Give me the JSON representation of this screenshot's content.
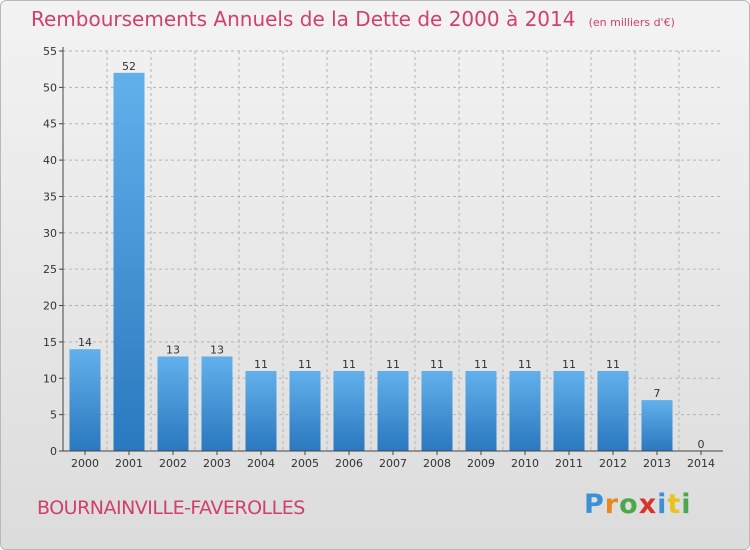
{
  "title": "Remboursements Annuels de la Dette de 2000 à 2014",
  "subtitle": "(en milliers d'€)",
  "place": "BOURNAINVILLE-FAVEROLLES",
  "logo": {
    "text": "Proxiti",
    "letters": [
      {
        "char": "P",
        "color": "#3d8fd6"
      },
      {
        "char": "r",
        "color": "#e8891e"
      },
      {
        "char": "o",
        "color": "#4aa84a"
      },
      {
        "char": "x",
        "color": "#d8342c"
      },
      {
        "char": "i",
        "color": "#3d8fd6"
      },
      {
        "char": "t",
        "color": "#e8c31e"
      },
      {
        "char": "i",
        "color": "#4aa84a"
      }
    ]
  },
  "colors": {
    "title": "#d0406a",
    "bar_light": "#62b0eb",
    "bar_dark": "#2a78be",
    "axis": "#444444",
    "grid": "#b4b4b4"
  },
  "chart_data": {
    "type": "bar",
    "categories": [
      "2000",
      "2001",
      "2002",
      "2003",
      "2004",
      "2005",
      "2006",
      "2007",
      "2008",
      "2009",
      "2010",
      "2011",
      "2012",
      "2013",
      "2014"
    ],
    "values": [
      14,
      52,
      13,
      13,
      11,
      11,
      11,
      11,
      11,
      11,
      11,
      11,
      11,
      7,
      0
    ],
    "ylim": [
      0,
      55
    ],
    "yticks": [
      0,
      5,
      10,
      15,
      20,
      25,
      30,
      35,
      40,
      45,
      50,
      55
    ],
    "grid": true
  }
}
